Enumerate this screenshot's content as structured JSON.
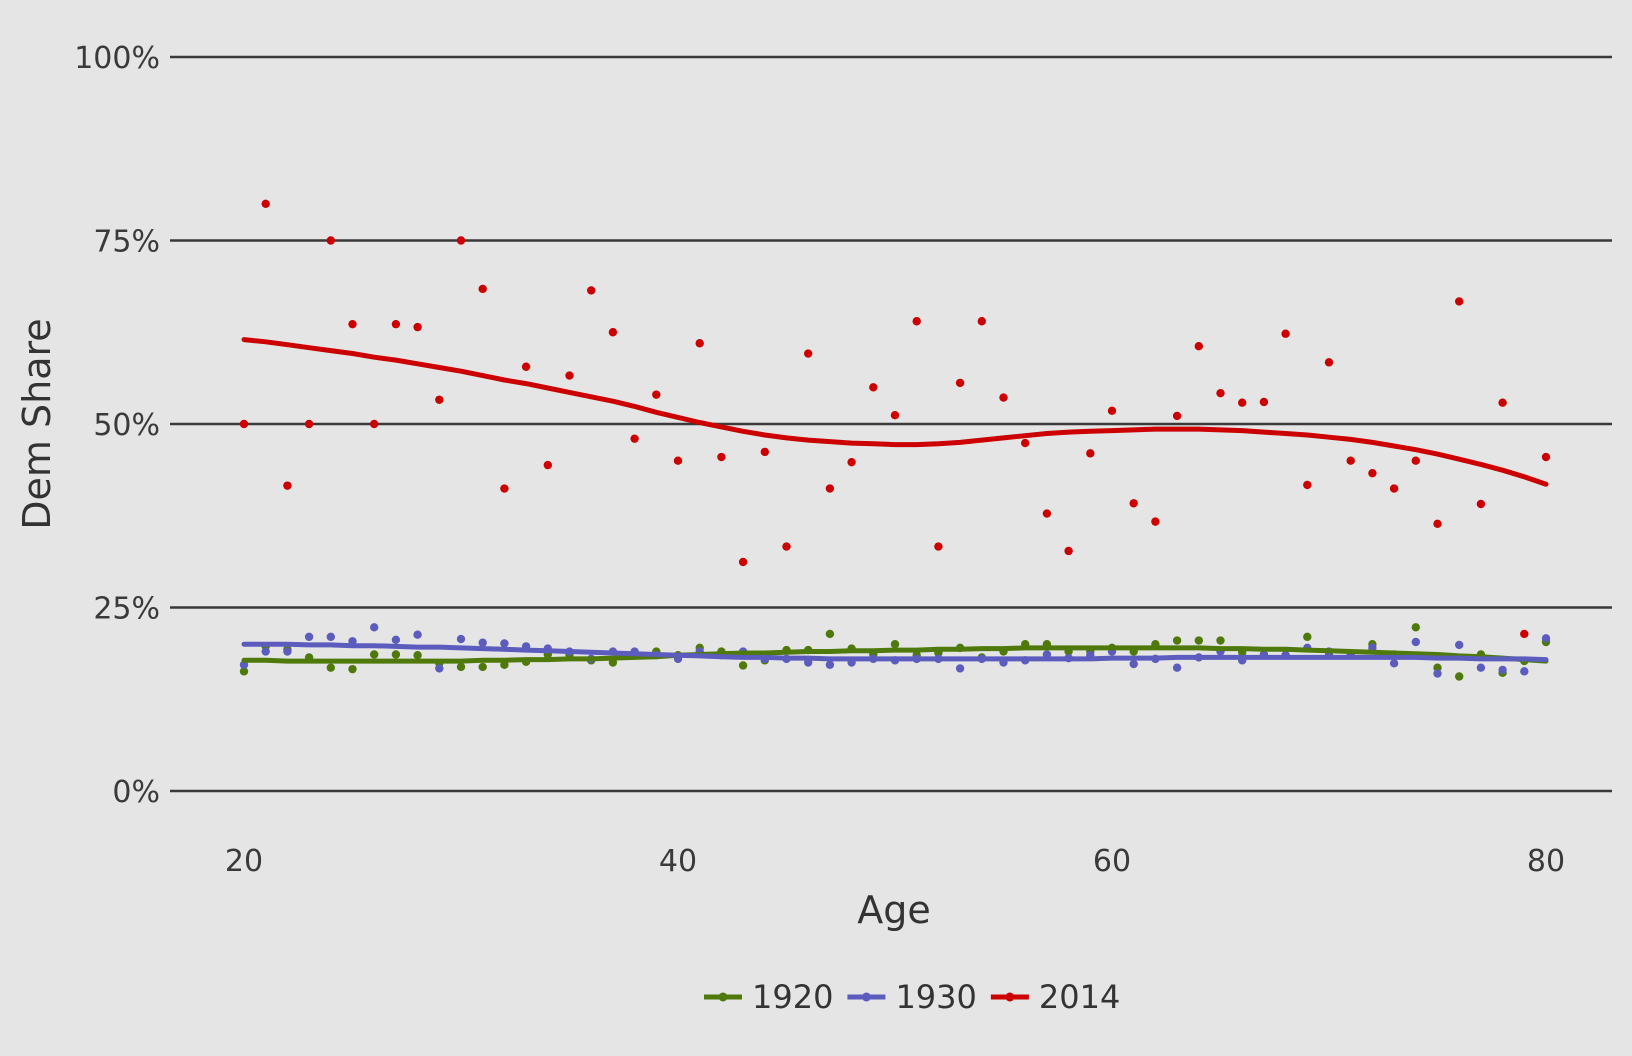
{
  "chart_data": {
    "type": "scatter",
    "title": "",
    "xlabel": "Age",
    "ylabel": "Dem Share",
    "xlim": [
      16.5,
      83.5
    ],
    "ylim": [
      -0.05,
      1.0
    ],
    "x_ticks": [
      20,
      40,
      60,
      80
    ],
    "x_tick_labels": [
      "20",
      "40",
      "60",
      "80"
    ],
    "y_ticks": [
      0,
      0.25,
      0.5,
      0.75,
      1.0
    ],
    "y_tick_labels": [
      "0%",
      "25%",
      "50%",
      "75%",
      "100%"
    ],
    "grid": "horizontal",
    "legend_position": "bottom",
    "x": [
      20,
      21,
      22,
      23,
      24,
      25,
      26,
      27,
      28,
      29,
      30,
      31,
      32,
      33,
      34,
      35,
      36,
      37,
      38,
      39,
      40,
      41,
      42,
      43,
      44,
      45,
      46,
      47,
      48,
      49,
      50,
      51,
      52,
      53,
      54,
      55,
      56,
      57,
      58,
      59,
      60,
      61,
      62,
      63,
      64,
      65,
      66,
      67,
      68,
      69,
      70,
      71,
      72,
      73,
      74,
      75,
      76,
      77,
      78,
      79,
      80
    ],
    "series": [
      {
        "name": "1920",
        "color": "#4f7a0b",
        "values": [
          0.163,
          0.197,
          0.193,
          0.182,
          0.168,
          0.166,
          0.186,
          0.186,
          0.185,
          0.174,
          0.169,
          0.169,
          0.172,
          0.176,
          0.186,
          0.186,
          0.178,
          0.175,
          0.186,
          0.19,
          0.185,
          0.195,
          0.19,
          0.171,
          0.178,
          0.192,
          0.192,
          0.214,
          0.194,
          0.186,
          0.2,
          0.185,
          0.188,
          0.195,
          0.182,
          0.19,
          0.2,
          0.2,
          0.19,
          0.19,
          0.195,
          0.19,
          0.2,
          0.205,
          0.205,
          0.205,
          0.189,
          0.186,
          0.185,
          0.21,
          0.185,
          0.186,
          0.2,
          0.186,
          0.223,
          0.168,
          0.156,
          0.186,
          0.161,
          0.177,
          0.203
        ],
        "trend": [
          0.178,
          0.178,
          0.177,
          0.177,
          0.177,
          0.177,
          0.177,
          0.177,
          0.177,
          0.177,
          0.177,
          0.178,
          0.178,
          0.179,
          0.179,
          0.18,
          0.18,
          0.181,
          0.182,
          0.183,
          0.185,
          0.186,
          0.187,
          0.188,
          0.188,
          0.189,
          0.19,
          0.19,
          0.191,
          0.191,
          0.192,
          0.192,
          0.193,
          0.193,
          0.194,
          0.194,
          0.195,
          0.195,
          0.195,
          0.195,
          0.195,
          0.195,
          0.195,
          0.195,
          0.195,
          0.194,
          0.194,
          0.193,
          0.193,
          0.192,
          0.191,
          0.19,
          0.189,
          0.188,
          0.187,
          0.186,
          0.184,
          0.183,
          0.181,
          0.179,
          0.177
        ]
      },
      {
        "name": "1930",
        "color": "#5c5cbf",
        "values": [
          0.172,
          0.19,
          0.19,
          0.21,
          0.21,
          0.204,
          0.223,
          0.206,
          0.213,
          0.167,
          0.207,
          0.202,
          0.201,
          0.197,
          0.194,
          0.19,
          0.18,
          0.19,
          0.19,
          0.185,
          0.18,
          0.19,
          0.185,
          0.19,
          0.18,
          0.18,
          0.175,
          0.172,
          0.175,
          0.18,
          0.178,
          0.18,
          0.18,
          0.167,
          0.18,
          0.175,
          0.178,
          0.186,
          0.181,
          0.185,
          0.19,
          0.173,
          0.18,
          0.168,
          0.182,
          0.19,
          0.178,
          0.185,
          0.185,
          0.195,
          0.19,
          0.185,
          0.195,
          0.174,
          0.203,
          0.16,
          0.199,
          0.168,
          0.165,
          0.163,
          0.208
        ],
        "trend": [
          0.2,
          0.2,
          0.2,
          0.199,
          0.199,
          0.198,
          0.198,
          0.197,
          0.196,
          0.196,
          0.195,
          0.194,
          0.193,
          0.192,
          0.191,
          0.19,
          0.189,
          0.188,
          0.187,
          0.186,
          0.185,
          0.184,
          0.183,
          0.182,
          0.182,
          0.181,
          0.181,
          0.18,
          0.18,
          0.18,
          0.18,
          0.18,
          0.18,
          0.18,
          0.18,
          0.18,
          0.18,
          0.18,
          0.18,
          0.18,
          0.181,
          0.181,
          0.181,
          0.182,
          0.182,
          0.182,
          0.182,
          0.182,
          0.182,
          0.182,
          0.182,
          0.182,
          0.182,
          0.182,
          0.182,
          0.181,
          0.181,
          0.18,
          0.18,
          0.18,
          0.179
        ]
      },
      {
        "name": "2014",
        "color": "#cc0000",
        "values": [
          0.5,
          0.8,
          0.416,
          0.5,
          0.75,
          0.636,
          0.5,
          0.636,
          0.632,
          0.533,
          0.75,
          0.684,
          0.412,
          0.578,
          0.444,
          0.566,
          0.682,
          0.625,
          0.48,
          0.54,
          0.45,
          0.61,
          0.455,
          0.312,
          0.462,
          0.333,
          0.596,
          0.412,
          0.448,
          0.55,
          0.512,
          0.64,
          0.333,
          0.556,
          0.64,
          0.536,
          0.474,
          0.378,
          0.327,
          0.46,
          0.518,
          0.392,
          0.367,
          0.511,
          0.606,
          0.542,
          0.529,
          0.53,
          0.623,
          0.417,
          0.584,
          0.45,
          0.433,
          0.412,
          0.45,
          0.364,
          0.667,
          0.391,
          0.529,
          0.214,
          0.455
        ],
        "trend": [
          0.615,
          0.612,
          0.608,
          0.604,
          0.6,
          0.596,
          0.591,
          0.587,
          0.582,
          0.577,
          0.572,
          0.566,
          0.56,
          0.555,
          0.549,
          0.543,
          0.537,
          0.531,
          0.524,
          0.516,
          0.509,
          0.502,
          0.496,
          0.49,
          0.485,
          0.481,
          0.478,
          0.476,
          0.474,
          0.473,
          0.472,
          0.472,
          0.473,
          0.475,
          0.478,
          0.481,
          0.484,
          0.487,
          0.489,
          0.49,
          0.491,
          0.492,
          0.493,
          0.493,
          0.493,
          0.492,
          0.491,
          0.489,
          0.487,
          0.485,
          0.482,
          0.479,
          0.475,
          0.47,
          0.465,
          0.459,
          0.452,
          0.445,
          0.437,
          0.428,
          0.418
        ]
      }
    ]
  }
}
